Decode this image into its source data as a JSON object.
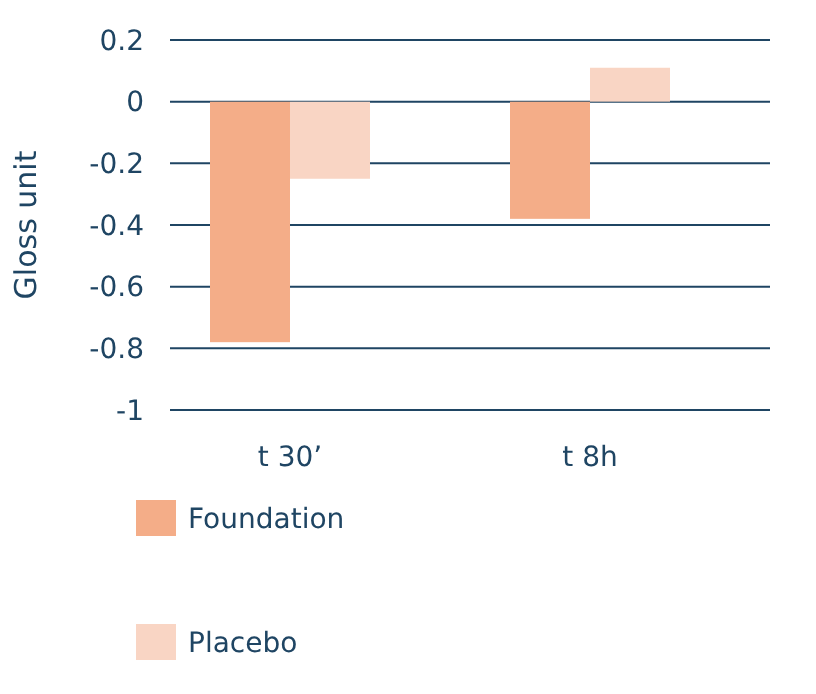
{
  "chart_data": {
    "type": "bar",
    "ylabel": "Gloss unit",
    "categories": [
      "t 30’",
      "t 8h"
    ],
    "series": [
      {
        "name": "Foundation",
        "color": "#f4ad88",
        "values": [
          -0.78,
          -0.38
        ]
      },
      {
        "name": "Placebo",
        "color": "#f9d5c4",
        "values": [
          -0.25,
          0.11
        ]
      }
    ],
    "ylim": [
      -1,
      0.2
    ],
    "yticks": [
      -1,
      -0.8,
      -0.6,
      -0.4,
      -0.2,
      0,
      0.2
    ],
    "grid": "y",
    "legend": "bottom"
  }
}
